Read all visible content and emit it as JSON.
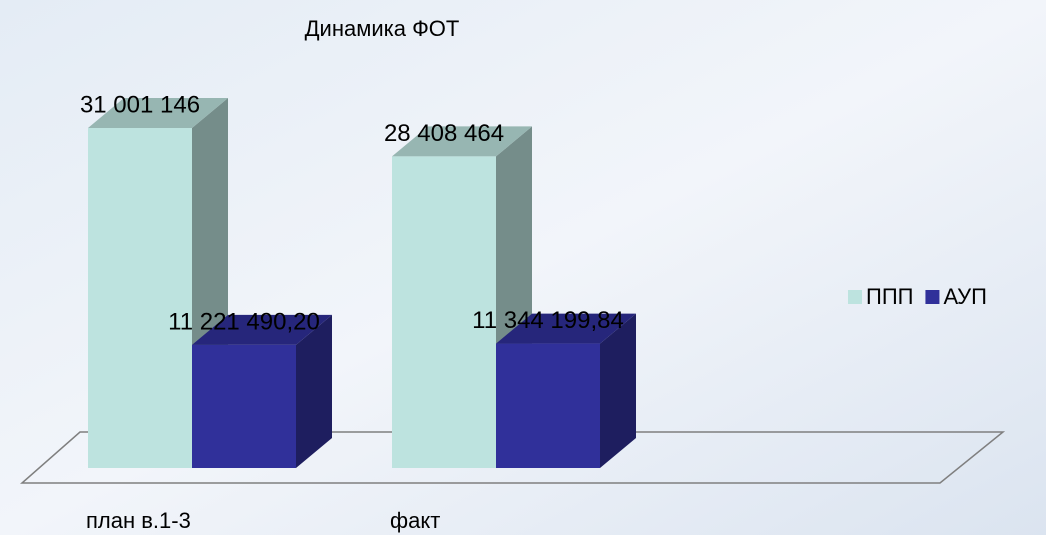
{
  "chart_data": {
    "type": "bar3d",
    "title": "Динамика ФОТ",
    "categories": [
      "план в.1-3",
      "факт"
    ],
    "series": [
      {
        "name": "ППП",
        "color": "#bde3df",
        "values": [
          31001146,
          28408464
        ],
        "value_labels": [
          "31 001 146",
          "28 408 464"
        ]
      },
      {
        "name": "АУП",
        "color": "#30309a",
        "values": [
          11221490.2,
          11344199.84
        ],
        "value_labels": [
          "11 221 490,20",
          "11 344 199,84"
        ]
      }
    ],
    "legend": "right"
  }
}
